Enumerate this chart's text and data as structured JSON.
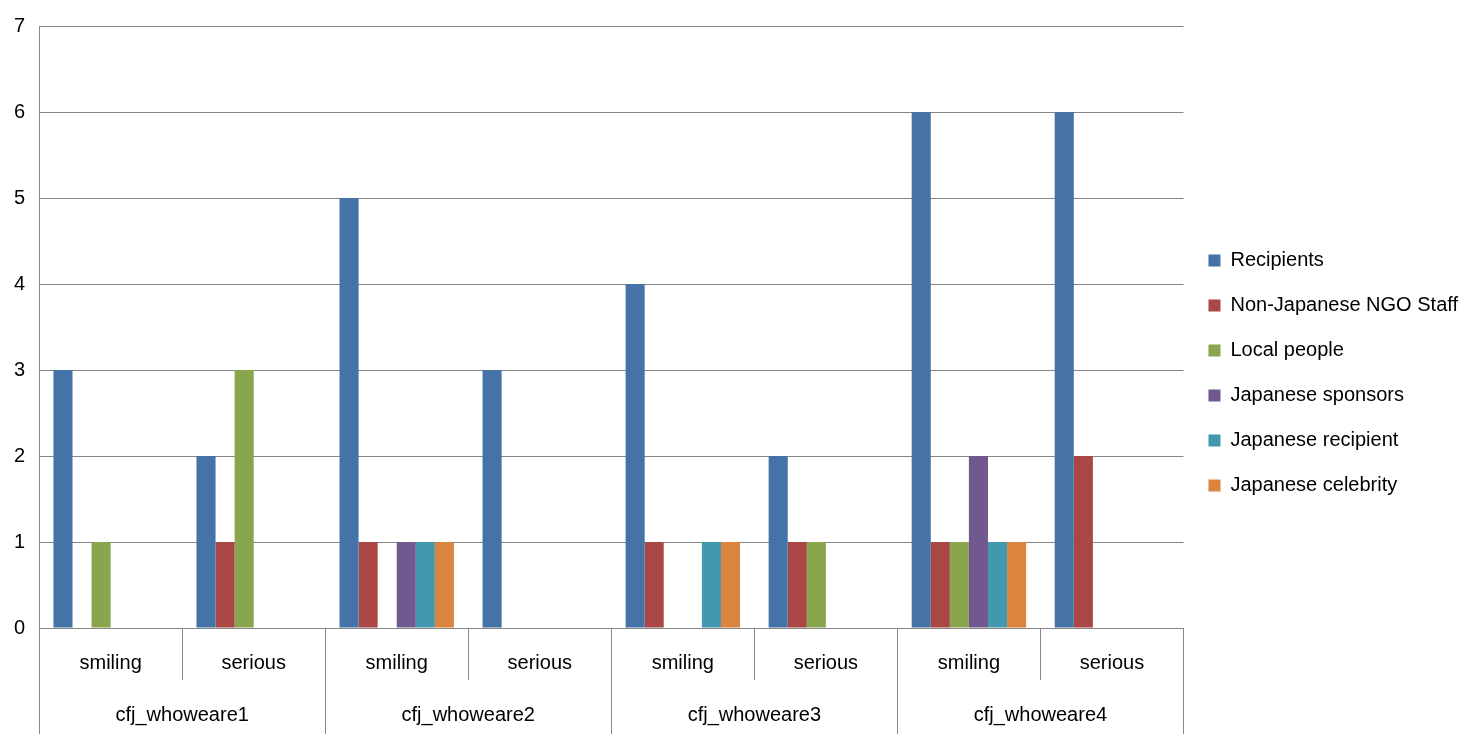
{
  "chart_data": {
    "type": "bar",
    "categories": [
      "smiling",
      "serious",
      "smiling",
      "serious",
      "smiling",
      "serious",
      "smiling",
      "serious"
    ],
    "series": [
      {
        "name": "Recipients",
        "color": "#4572a7",
        "values": [
          3,
          2,
          5,
          3,
          4,
          2,
          6,
          6
        ]
      },
      {
        "name": "Non-Japanese NGO Staff",
        "color": "#aa4643",
        "values": [
          0,
          1,
          1,
          0,
          1,
          1,
          1,
          2
        ]
      },
      {
        "name": "Local people",
        "color": "#89a54e",
        "values": [
          1,
          3,
          0,
          0,
          0,
          1,
          1,
          0
        ]
      },
      {
        "name": "Japanese sponsors",
        "color": "#71588f",
        "values": [
          0,
          0,
          1,
          0,
          0,
          0,
          2,
          0
        ]
      },
      {
        "name": "Japanese recipient",
        "color": "#4198af",
        "values": [
          0,
          0,
          1,
          0,
          1,
          0,
          1,
          0
        ]
      },
      {
        "name": "Japanese celebrity",
        "color": "#db843d",
        "values": [
          0,
          0,
          1,
          0,
          1,
          0,
          1,
          0
        ]
      }
    ],
    "annotations": [
      "cfj_whoweare1",
      "cfj_whoweare2",
      "cfj_whoweare3",
      "cfj_whoweare4"
    ],
    "ylim": [
      0,
      7
    ],
    "yticks": [
      0,
      1,
      2,
      3,
      4,
      5,
      6,
      7
    ],
    "grid": "y",
    "legend": "right"
  }
}
